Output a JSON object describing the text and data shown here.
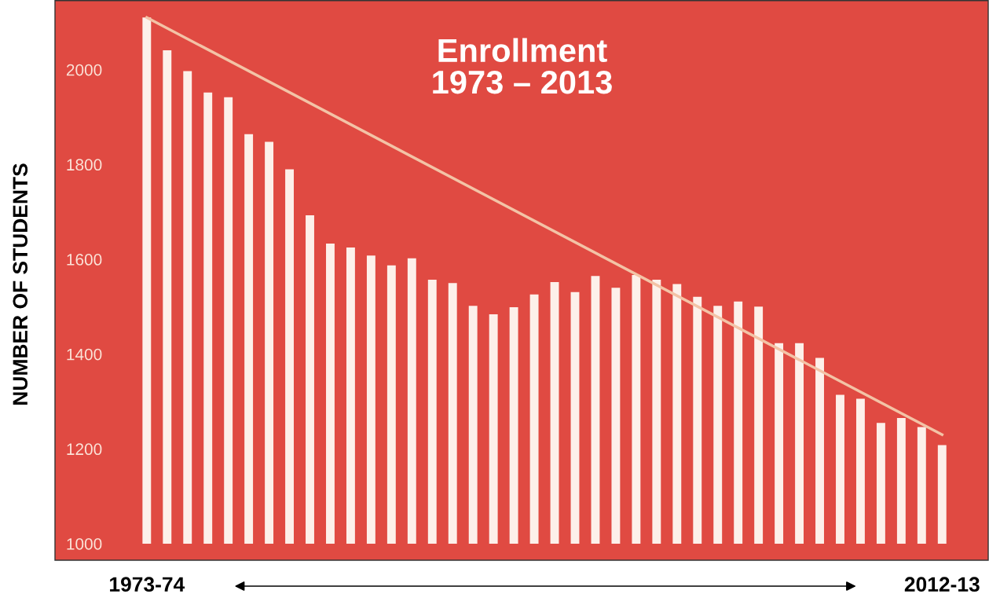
{
  "chart_data": {
    "type": "bar",
    "title": "Enrollment\n1973 – 2013",
    "ylabel": "NUMBER OF STUDENTS",
    "categories": [
      "1973-74",
      null,
      null,
      null,
      null,
      null,
      null,
      null,
      null,
      null,
      null,
      null,
      null,
      null,
      null,
      null,
      null,
      null,
      null,
      null,
      null,
      null,
      null,
      null,
      null,
      null,
      null,
      null,
      null,
      null,
      null,
      null,
      null,
      null,
      null,
      null,
      null,
      null,
      null,
      "2012-13"
    ],
    "series": [
      {
        "color": "#fdf0ea",
        "values": [
          2110,
          2041,
          1997,
          1952,
          1942,
          1864,
          1848,
          1790,
          1693,
          1633,
          1625,
          1608,
          1587,
          1602,
          1557,
          1550,
          1502,
          1484,
          1499,
          1526,
          1552,
          1531,
          1565,
          1540,
          1567,
          1557,
          1548,
          1521,
          1502,
          1511,
          1500,
          1423,
          1423,
          1392,
          1314,
          1306,
          1255,
          1265,
          1246,
          1208
        ]
      },
      {
        "type": "line",
        "color": "#f3c3a6",
        "x": [
          "1973-74",
          "2012-13"
        ],
        "values": [
          2110,
          1230
        ]
      }
    ],
    "ylim": [
      1000,
      2147
    ],
    "yticks": [
      1000,
      1200,
      1400,
      1600,
      1800,
      2000
    ],
    "grid": false,
    "legend": false
  }
}
